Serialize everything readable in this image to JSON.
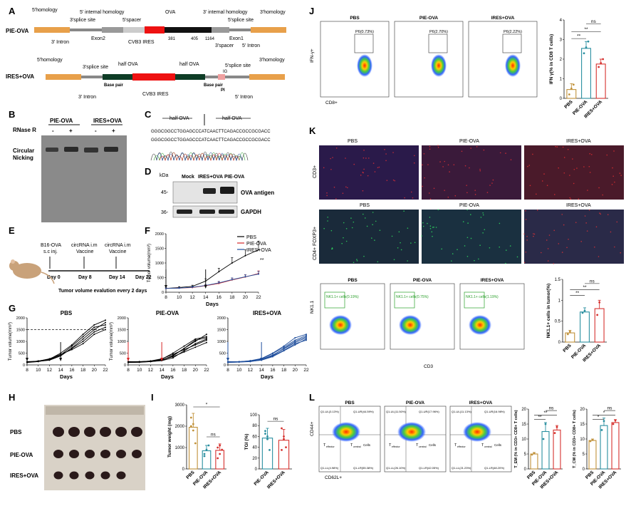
{
  "panels": {
    "A": {
      "label": "A",
      "pie_name": "PIE-OVA",
      "ires_name": "IRES+OVA",
      "pie": {
        "homology5": "5'homology",
        "internal5": "5' internal homology",
        "ova": "OVA",
        "internal3": "3' internal homology",
        "homology3": "3'homology",
        "splice3": "3'splice site",
        "spacer5": "5'spacer",
        "splice5": "5'splice site",
        "intron3": "3' Intron",
        "exon2": "Exon2",
        "cvb3": "CVB3 IRES",
        "n381": "381",
        "n405": "405",
        "n1164": "1164",
        "exon1": "Exon1",
        "spacer3": "3'spacer",
        "intron5": "5' Intron",
        "seq_label": "CAUUCCA"
      },
      "ires": {
        "homology5": "5'homology",
        "splice3": "3'splice site",
        "half1": "half OVA",
        "half2": "half OVA",
        "splice5": "5'splice site",
        "homology3": "3'homology",
        "base1": "Base pair",
        "base2": "Base pair",
        "ig": "IG",
        "pi": "PI",
        "intron3": "3' Intron",
        "cvb3": "CVB3 IRES",
        "intron5": "5' Intron",
        "seq1": "CAGCAGGG",
        "seq2": "AAGGAG"
      }
    },
    "B": {
      "label": "B",
      "group1": "PIE-OVA",
      "group2": "IRES+OVA",
      "rnase": "RNase R",
      "signs": [
        "-",
        "+",
        "-",
        "+"
      ],
      "circular": "Circular",
      "nicking": "Nicking"
    },
    "C": {
      "label": "C",
      "half_left": "half OVA",
      "half_right": "half OVA",
      "sequence1": "GGGCGGCCTGGAGCCCATCAACTTCAGACCGCCGCGACC",
      "sequence2": "GGGCGGCCTGGAGCCCATCAACTTCAGACCGCCGCGACC"
    },
    "D": {
      "label": "D",
      "kda": "kDa",
      "lanes": [
        "Mock",
        "IRES+OVA",
        "PIE-OVA"
      ],
      "mw": [
        "45-",
        "36-"
      ],
      "bands": [
        "OVA antigen",
        "GAPDH"
      ]
    },
    "E": {
      "label": "E",
      "events": [
        {
          "top": "B16-OVA",
          "top2": "s.c inj.",
          "day": "Day 0"
        },
        {
          "top": "circRNA i.m",
          "top2": "Vaccine",
          "day": "Day 8"
        },
        {
          "top": "circRNA i.m",
          "top2": "Vaccine",
          "day": "Day 14"
        },
        {
          "top": "",
          "top2": "",
          "day": "Day 22"
        }
      ],
      "caption": "Tumor volume evalution every 2 days"
    },
    "F": {
      "label": "F",
      "ylabel": "Tumor volume(mm³)",
      "xlabel": "Days",
      "sig": "**",
      "legend": [
        "PBS",
        "PIE-OVA",
        "IRES+OVA"
      ]
    },
    "G": {
      "label": "G",
      "ylabel": "Tumor volume(mm³)",
      "xlabel": "Days",
      "titles": [
        "PBS",
        "PIE-OVA",
        "IRES+OVA"
      ]
    },
    "H": {
      "label": "H",
      "rows": [
        "PBS",
        "PIE-OVA",
        "IRES+OVA"
      ]
    },
    "I": {
      "label": "I",
      "ylabel_w": "Tumor weight (mg)",
      "ylabel_tgi": "TGI (%)",
      "sig_star": "*",
      "ns1": "ns",
      "ns2": "ns"
    },
    "J": {
      "label": "J",
      "flow_titles": [
        "PBS",
        "PIE-OVA",
        "IRES+OVA"
      ],
      "gates": [
        "P6(0.73%)",
        "P6(2.70%)",
        "P6(2.22%)"
      ],
      "yaxis": "IFN-γ+",
      "xaxis": "CD8+",
      "bar_ylabel": "IFN γ(% in CD8 T cells)",
      "sigs": [
        "ns",
        "**",
        "**"
      ]
    },
    "K": {
      "label": "K",
      "img_titles": [
        "PBS",
        "PIE-OVA",
        "IRES+OVA"
      ],
      "row_labels": [
        "CD3+",
        "CD4+ FOXP3+"
      ],
      "flow_titles": [
        "PBS",
        "PIE-OVA",
        "IRES+OVA"
      ],
      "gates": [
        "NK1.1+ cells(0.19%)",
        "NK1.1+ cells(0.75%)",
        "NK1.1+ cells(1.19%)"
      ],
      "yaxis": "NK1.1",
      "xaxis": "CD3",
      "bar_ylabel": "NK1.1+ cells in tumor(%)",
      "sigs": [
        "ns",
        "**",
        "**"
      ]
    },
    "L": {
      "label": "L",
      "flow_titles": [
        "PBS",
        "PIE-OVA",
        "IRES+OVA"
      ],
      "yaxis": "CD44+",
      "xaxis": "CD62L+",
      "q_pbs": [
        "Q1-UL(3.13%)",
        "Q1-UR(44.59%)",
        "Q1-LL(4.98%)",
        "Q1-LR(55.38%)"
      ],
      "q_pie": [
        "Q1-UL(11.50%)",
        "Q1-UR(17.96%)",
        "Q1-LL(26.10%)",
        "Q1-LR(42.05%)"
      ],
      "q_ires": [
        "Q1-UL(11.13%)",
        "Q1-UR(16.98%)",
        "Q1-LL(21.23%)",
        "Q1-LR(48.20%)"
      ],
      "tem": "T",
      "tem_sub": "effector",
      "tcm": "T",
      "tcm_sub": "central",
      "cells": "Cells",
      "bar1_ylabel": "T_EM (% in CD3+ CD8+ T cells)",
      "bar2_ylabel": "T_CM (% in CD3+ CD8+ T cells)",
      "sigs1": [
        "ns",
        "**",
        "**"
      ],
      "sigs2": [
        "ns",
        "*",
        "*"
      ]
    }
  },
  "chart_data": [
    {
      "id": "F",
      "type": "line",
      "title": "",
      "x": [
        8,
        10,
        12,
        14,
        16,
        18,
        20,
        22
      ],
      "xlabel": "Days",
      "ylabel": "Tumor volume(mm³)",
      "ylim": [
        0,
        2000
      ],
      "xticks": [
        8,
        10,
        12,
        14,
        16,
        18,
        20,
        22
      ],
      "yticks": [
        0,
        500,
        1000,
        1500,
        2000
      ],
      "series": [
        {
          "name": "PBS",
          "color": "#000000",
          "values": [
            130,
            160,
            200,
            380,
            700,
            1000,
            1250,
            1450
          ],
          "err": [
            20,
            30,
            40,
            80,
            120,
            180,
            200,
            300
          ]
        },
        {
          "name": "PIE-OVA",
          "color": "#d62728",
          "values": [
            130,
            140,
            160,
            220,
            300,
            420,
            520,
            640
          ],
          "err": [
            15,
            20,
            25,
            35,
            50,
            60,
            70,
            90
          ]
        },
        {
          "name": "IRES+OVA",
          "color": "#1f4e9c",
          "values": [
            130,
            140,
            170,
            230,
            320,
            430,
            530,
            620
          ],
          "err": [
            15,
            20,
            25,
            35,
            50,
            60,
            70,
            90
          ]
        }
      ]
    },
    {
      "id": "G1",
      "type": "line",
      "title": "PBS",
      "color": "#000000",
      "x": [
        8,
        10,
        12,
        14,
        16,
        18,
        20,
        22
      ],
      "ylim": [
        0,
        2000
      ],
      "xticks": [
        8,
        10,
        12,
        14,
        16,
        18,
        20,
        22
      ],
      "yticks": [
        0,
        500,
        1000,
        1500,
        2000
      ],
      "threshold": 1500,
      "series": [
        [
          120,
          150,
          200,
          380,
          720,
          1100,
          1500,
          1800
        ],
        [
          100,
          140,
          230,
          420,
          800,
          1200,
          1600,
          1700
        ],
        [
          130,
          160,
          260,
          450,
          650,
          900,
          1300,
          1500
        ],
        [
          110,
          170,
          240,
          500,
          850,
          1300,
          1700,
          1900
        ],
        [
          140,
          150,
          210,
          390,
          700,
          1000,
          1400,
          1600
        ]
      ]
    },
    {
      "id": "G2",
      "type": "line",
      "title": "PIE-OVA",
      "color": "#000000",
      "x": [
        8,
        10,
        12,
        14,
        16,
        18,
        20,
        22
      ],
      "ylim": [
        0,
        2000
      ],
      "xticks": [
        8,
        10,
        12,
        14,
        16,
        18,
        20,
        22
      ],
      "yticks": [
        0,
        500,
        1000,
        1500,
        2000
      ],
      "series": [
        [
          120,
          130,
          150,
          200,
          400,
          700,
          1000,
          1300
        ],
        [
          100,
          110,
          140,
          180,
          300,
          600,
          900,
          1100
        ],
        [
          130,
          140,
          160,
          240,
          500,
          800,
          1100,
          1200
        ],
        [
          110,
          120,
          150,
          220,
          350,
          550,
          750,
          950
        ],
        [
          140,
          130,
          170,
          260,
          450,
          650,
          850,
          1050
        ],
        [
          120,
          125,
          140,
          190,
          380,
          700,
          1050,
          1150
        ]
      ]
    },
    {
      "id": "G3",
      "type": "line",
      "title": "IRES+OVA",
      "color": "#1f4e9c",
      "x": [
        8,
        10,
        12,
        14,
        16,
        18,
        20,
        22
      ],
      "ylim": [
        0,
        2000
      ],
      "xticks": [
        8,
        10,
        12,
        14,
        16,
        18,
        20,
        22
      ],
      "yticks": [
        0,
        500,
        1000,
        1500,
        2000
      ],
      "series": [
        [
          120,
          130,
          160,
          220,
          400,
          700,
          1000,
          1200
        ],
        [
          100,
          120,
          150,
          200,
          350,
          600,
          850,
          1100
        ],
        [
          130,
          140,
          170,
          250,
          480,
          750,
          1050,
          1250
        ],
        [
          110,
          120,
          140,
          210,
          380,
          620,
          900,
          1050
        ],
        [
          140,
          130,
          180,
          270,
          500,
          800,
          1150,
          1300
        ],
        [
          120,
          135,
          155,
          230,
          420,
          680,
          950,
          1150
        ]
      ]
    },
    {
      "id": "I1",
      "type": "bar",
      "categories": [
        "PBS",
        "PIE-OVA",
        "IRES+OVA"
      ],
      "colors": [
        "#c0913a",
        "#2a8fa0",
        "#d6322f"
      ],
      "values": [
        1950,
        850,
        870
      ],
      "err": [
        650,
        250,
        300
      ],
      "ylabel": "Tumor weight (mg)",
      "ylim": [
        0,
        3000
      ],
      "yticks": [
        0,
        1000,
        2000,
        3000
      ],
      "points": [
        [
          2400,
          1800,
          1200,
          2000,
          2100
        ],
        [
          600,
          900,
          1100,
          700
        ],
        [
          500,
          1100,
          900,
          1000,
          700
        ]
      ]
    },
    {
      "id": "I2",
      "type": "bar",
      "categories": [
        "PIE-OVA",
        "IRES+OVA"
      ],
      "colors": [
        "#2a8fa0",
        "#d6322f"
      ],
      "values": [
        57,
        53
      ],
      "err": [
        18,
        20
      ],
      "ylabel": "TGI (%)",
      "ylim": [
        0,
        100
      ],
      "yticks": [
        0,
        20,
        40,
        60,
        80,
        100
      ],
      "points": [
        [
          70,
          55,
          35,
          65,
          60
        ],
        [
          75,
          55,
          40,
          35,
          60
        ]
      ]
    },
    {
      "id": "J",
      "type": "bar",
      "categories": [
        "PBS",
        "PIE-OVA",
        "IRES+OVA"
      ],
      "colors": [
        "#c0913a",
        "#2a8fa0",
        "#d6322f"
      ],
      "values": [
        0.45,
        2.55,
        1.75
      ],
      "err": [
        0.3,
        0.35,
        0.25
      ],
      "ylabel": "IFN γ(% in CD8 T cells)",
      "ylim": [
        0,
        4
      ],
      "yticks": [
        0,
        1,
        2,
        3,
        4
      ],
      "points": [
        [
          0.2,
          0.5,
          0.7
        ],
        [
          2.3,
          2.6,
          2.9
        ],
        [
          1.6,
          1.8,
          2.0
        ]
      ]
    },
    {
      "id": "K",
      "type": "bar",
      "categories": [
        "PBS",
        "PIE-OVA",
        "IRES+OVA"
      ],
      "colors": [
        "#c0913a",
        "#2a8fa0",
        "#d6322f"
      ],
      "values": [
        0.22,
        0.72,
        0.8
      ],
      "err": [
        0.06,
        0.1,
        0.2
      ],
      "ylabel": "NK1.1+ cells in tumor(%)",
      "ylim": [
        0,
        1.5
      ],
      "yticks": [
        0,
        0.5,
        1.0,
        1.5
      ],
      "points": [
        [
          0.19,
          0.25
        ],
        [
          0.7,
          0.75
        ],
        [
          0.65,
          0.95
        ]
      ]
    },
    {
      "id": "L1",
      "type": "bar",
      "categories": [
        "PBS",
        "PIE-OVA",
        "IRES+OVA"
      ],
      "colors": [
        "#c0913a",
        "#2a8fa0",
        "#d6322f"
      ],
      "values": [
        5,
        12.5,
        13
      ],
      "err": [
        0.5,
        3,
        1.5
      ],
      "ylabel": "T_EM (% in CD3+ CD8+ T cells)",
      "ylim": [
        0,
        20
      ],
      "yticks": [
        0,
        5,
        10,
        15,
        20
      ],
      "points": [
        [
          4.8,
          5.2
        ],
        [
          10,
          15
        ],
        [
          12,
          14
        ]
      ]
    },
    {
      "id": "L2",
      "type": "bar",
      "categories": [
        "PBS",
        "PIE-OVA",
        "IRES+OVA"
      ],
      "colors": [
        "#c0913a",
        "#2a8fa0",
        "#d6322f"
      ],
      "values": [
        9.5,
        14.5,
        15.5
      ],
      "err": [
        0.5,
        2.5,
        1
      ],
      "ylabel": "T_CM (% in CD3+ CD8+ T cells)",
      "ylim": [
        0,
        20
      ],
      "yticks": [
        0,
        5,
        10,
        15,
        20
      ],
      "points": [
        [
          9.3,
          9.7
        ],
        [
          13,
          16
        ],
        [
          15,
          16.2
        ]
      ]
    }
  ]
}
